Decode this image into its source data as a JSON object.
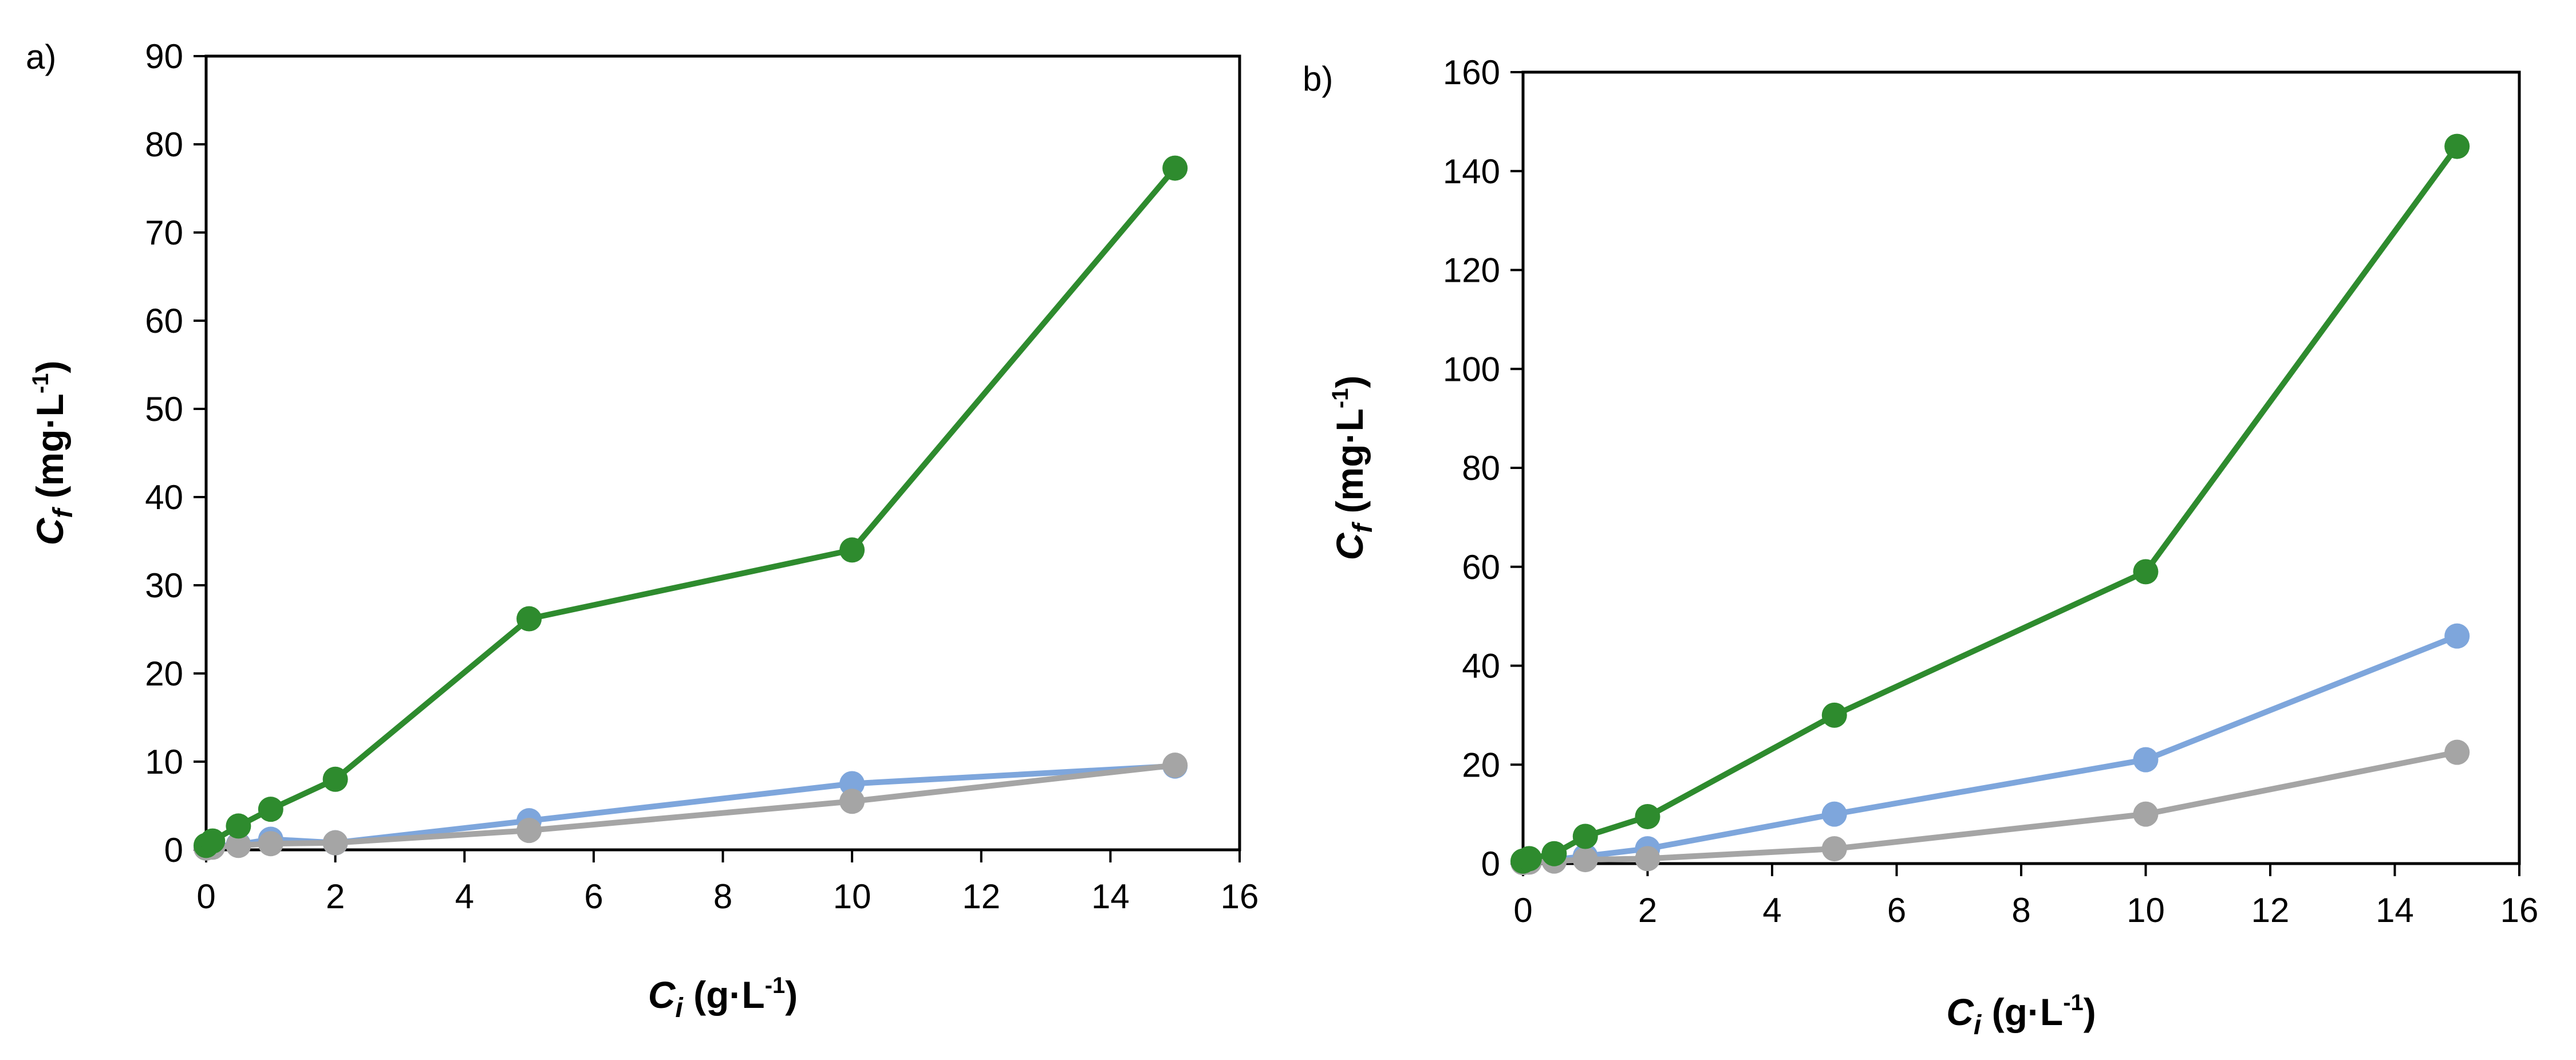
{
  "chart_data": [
    {
      "panel_label": "a)",
      "type": "line",
      "x_title": {
        "main": "C",
        "sub": "i",
        "unit_pre": " (g·L",
        "unit_sup": "-1",
        "unit_post": ")"
      },
      "y_title": {
        "main": "C",
        "sub": "f",
        "unit_pre": " (mg·L",
        "unit_sup": "-1",
        "unit_post": ")"
      },
      "xlim": [
        0,
        16
      ],
      "ylim": [
        0,
        90
      ],
      "xticks": [
        0,
        2,
        4,
        6,
        8,
        10,
        12,
        14,
        16
      ],
      "yticks": [
        0,
        10,
        20,
        30,
        40,
        50,
        60,
        70,
        80,
        90
      ],
      "grid": false,
      "series": [
        {
          "name": "blue",
          "color": "#7ea6dc",
          "x": [
            0,
            0.1,
            0.5,
            1,
            2,
            5,
            10,
            15
          ],
          "y": [
            0.3,
            0.4,
            0.6,
            1.2,
            0.8,
            3.3,
            7.5,
            9.5
          ]
        },
        {
          "name": "gray",
          "color": "#a5a5a5",
          "x": [
            0,
            0.1,
            0.5,
            1,
            2,
            5,
            10,
            15
          ],
          "y": [
            0.2,
            0.3,
            0.5,
            0.7,
            0.8,
            2.2,
            5.5,
            9.6
          ]
        },
        {
          "name": "green",
          "color": "#2e8b2e",
          "x": [
            0,
            0.1,
            0.5,
            1,
            2,
            5,
            10,
            15
          ],
          "y": [
            0.5,
            1.0,
            2.7,
            4.6,
            8.0,
            26.2,
            34.0,
            77.3
          ]
        }
      ]
    },
    {
      "panel_label": "b)",
      "type": "line",
      "x_title": {
        "main": "C",
        "sub": "i",
        "unit_pre": " (g·L",
        "unit_sup": "-1",
        "unit_post": ")"
      },
      "y_title": {
        "main": "C",
        "sub": "f",
        "unit_pre": " (mg·L",
        "unit_sup": "-1",
        "unit_post": ")"
      },
      "xlim": [
        0,
        16
      ],
      "ylim": [
        0,
        160
      ],
      "xticks": [
        0,
        2,
        4,
        6,
        8,
        10,
        12,
        14,
        16
      ],
      "yticks": [
        0,
        20,
        40,
        60,
        80,
        100,
        120,
        140,
        160
      ],
      "grid": false,
      "series": [
        {
          "name": "blue",
          "color": "#7ea6dc",
          "x": [
            0,
            0.1,
            0.5,
            1,
            2,
            5,
            10,
            15
          ],
          "y": [
            0.3,
            0.4,
            0.8,
            1.5,
            3.0,
            10.0,
            21.0,
            46.0
          ]
        },
        {
          "name": "gray",
          "color": "#a5a5a5",
          "x": [
            0,
            0.1,
            0.5,
            1,
            2,
            5,
            10,
            15
          ],
          "y": [
            0.2,
            0.3,
            0.5,
            0.8,
            1.0,
            3.0,
            10.0,
            22.5
          ]
        },
        {
          "name": "green",
          "color": "#2e8b2e",
          "x": [
            0,
            0.1,
            0.5,
            1,
            2,
            5,
            10,
            15
          ],
          "y": [
            0.5,
            1.0,
            2.0,
            5.5,
            9.5,
            30.0,
            59.0,
            145.0
          ]
        }
      ]
    }
  ]
}
